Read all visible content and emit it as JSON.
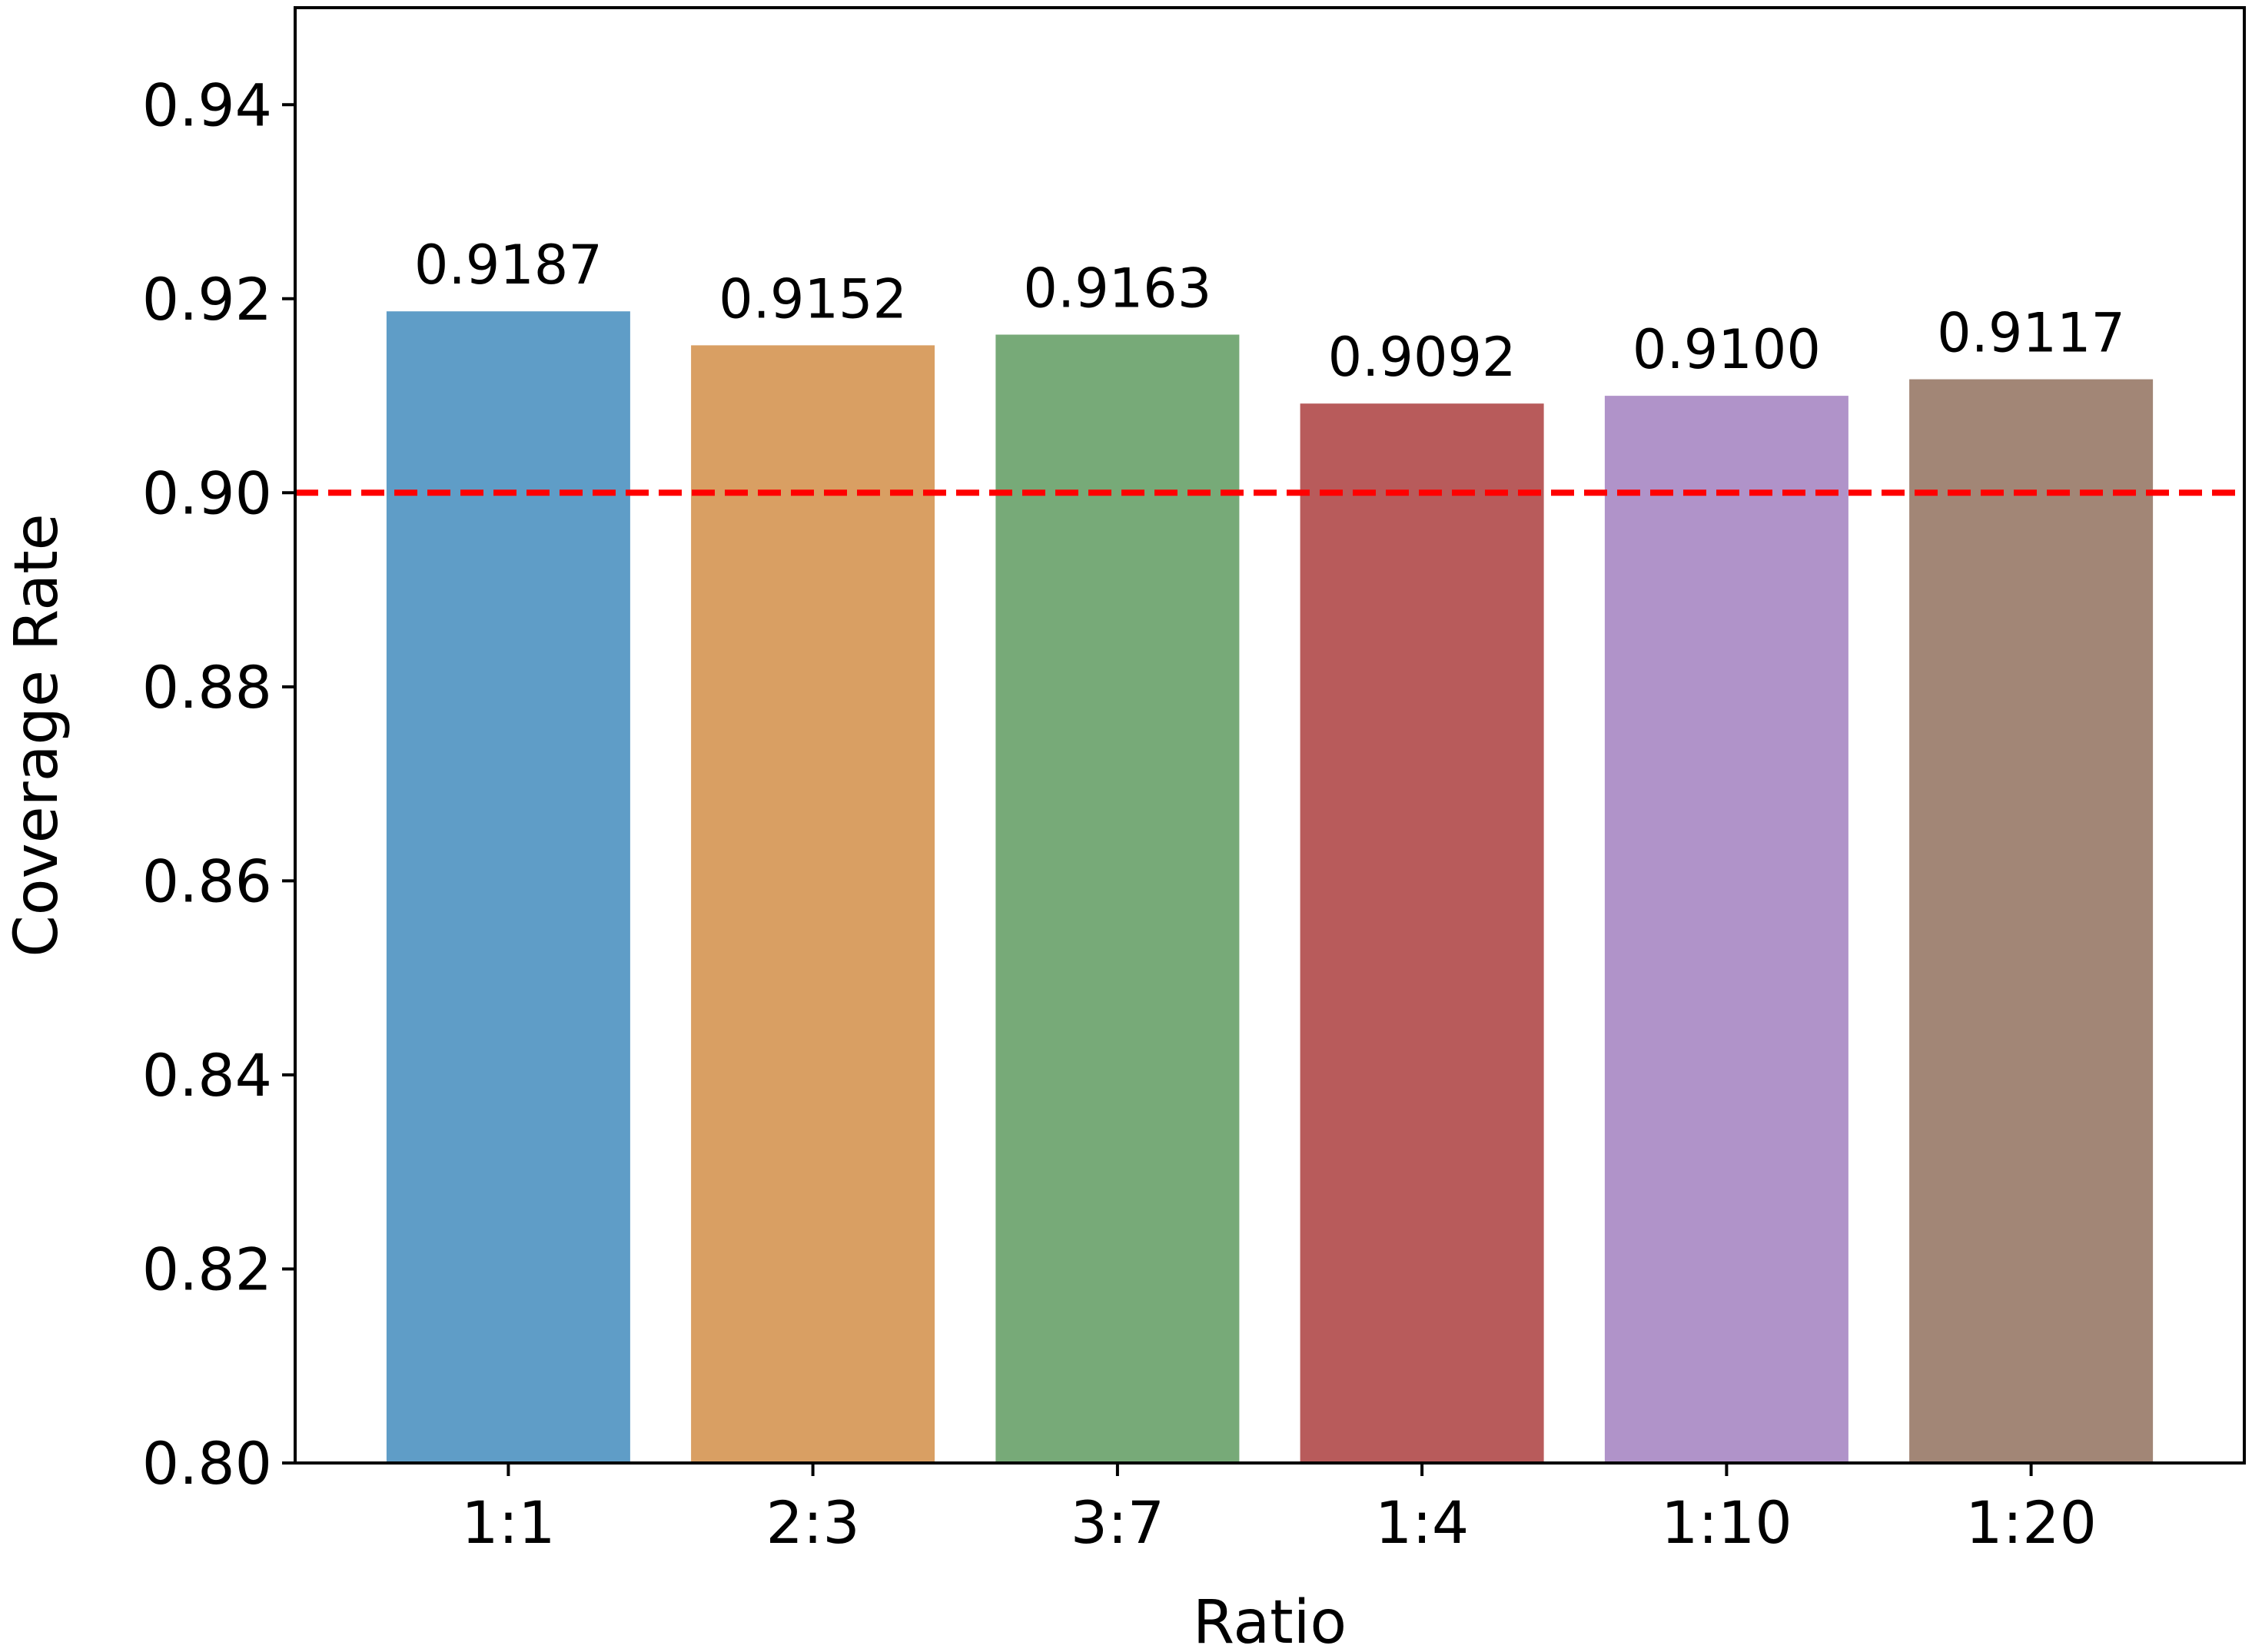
{
  "chart_data": {
    "type": "bar",
    "title": "",
    "xlabel": "Ratio",
    "ylabel": "Coverage Rate",
    "categories": [
      "1:1",
      "2:3",
      "3:7",
      "1:4",
      "1:10",
      "1:20"
    ],
    "values": [
      0.9187,
      0.9152,
      0.9163,
      0.9092,
      0.91,
      0.9117
    ],
    "value_labels": [
      "0.9187",
      "0.9152",
      "0.9163",
      "0.9092",
      "0.9100",
      "0.9117"
    ],
    "colors": [
      "#5f9dc7",
      "#d99f63",
      "#77aa78",
      "#b85b5b",
      "#b093c9",
      "#a28676"
    ],
    "ylim": [
      0.8,
      0.95
    ],
    "yticks": [
      0.8,
      0.82,
      0.84,
      0.86,
      0.88,
      0.9,
      0.92,
      0.94
    ],
    "ytick_labels": [
      "0.80",
      "0.82",
      "0.84",
      "0.86",
      "0.88",
      "0.90",
      "0.92",
      "0.94"
    ],
    "reference_line": {
      "y": 0.9,
      "color": "#ff0000",
      "style": "dashed"
    },
    "grid": false
  }
}
